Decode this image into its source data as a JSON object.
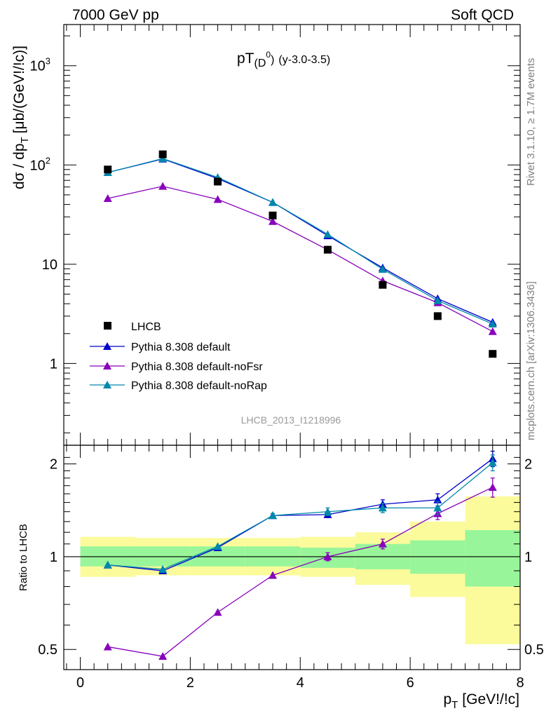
{
  "header": {
    "energy": "7000 GeV pp",
    "process": "Soft QCD"
  },
  "side": {
    "rivet": "Rivet 3.1.10, ≥ 1.7M events",
    "source": "mcplots.cern.ch [arXiv:1306.3436]"
  },
  "chart_data": [
    {
      "type": "scatter",
      "title_main": "pT",
      "title_sub": "(D",
      "title_sup": "0",
      "title_sub_close": ")",
      "title_extra": "(y-3.0-3.5)",
      "ylabel_main": "dσ / dp",
      "ylabel_sub": "T",
      "ylabel_unit": "[μb/(GeV!/!c)]",
      "analysis_tag": "LHCB_2013_I1218996",
      "yscale": "log",
      "xlim": [
        -0.3,
        8.0
      ],
      "ylim": [
        0.15,
        2600
      ],
      "y_ticks": [
        {
          "value": 1,
          "label": "1"
        },
        {
          "value": 10,
          "label": "10"
        },
        {
          "value": 100,
          "label": "10",
          "sup": "2"
        },
        {
          "value": 1000,
          "label": "10",
          "sup": "3"
        }
      ],
      "legend_position": "left-lower",
      "data": {
        "name": "LHCB",
        "color": "#000000",
        "x": [
          0.5,
          1.5,
          2.5,
          3.5,
          4.5,
          5.5,
          6.5,
          7.5
        ],
        "y": [
          90,
          128,
          68,
          31,
          14,
          6.2,
          3.0,
          1.25
        ]
      },
      "series": [
        {
          "name": "Pythia 8.308 default",
          "color": "#0000cc",
          "x": [
            0.5,
            1.5,
            2.5,
            3.5,
            4.5,
            5.5,
            6.5,
            7.5
          ],
          "y": [
            84,
            115,
            73,
            42,
            19.4,
            9.2,
            4.5,
            2.6
          ]
        },
        {
          "name": "Pythia 8.308 default-noFsr",
          "color": "#8800bb",
          "x": [
            0.5,
            1.5,
            2.5,
            3.5,
            4.5,
            5.5,
            6.5,
            7.5
          ],
          "y": [
            46,
            61,
            45,
            27,
            14,
            6.8,
            4.1,
            2.1
          ]
        },
        {
          "name": "Pythia 8.308 default-noRap",
          "color": "#0088aa",
          "x": [
            0.5,
            1.5,
            2.5,
            3.5,
            4.5,
            5.5,
            6.5,
            7.5
          ],
          "y": [
            84,
            116,
            75,
            42,
            20,
            8.9,
            4.3,
            2.5
          ]
        }
      ]
    },
    {
      "type": "line",
      "ylabel": "Ratio to LHCB",
      "xlabel_main": "p",
      "xlabel_sub": "T",
      "xlabel_unit": "[GeV!/!c]",
      "yscale": "log",
      "xlim": [
        -0.3,
        8.0
      ],
      "ylim": [
        0.43,
        2.3
      ],
      "x_ticks": [
        0,
        2,
        4,
        6,
        8
      ],
      "y_ticks": [
        {
          "value": 0.5,
          "label": "0.5"
        },
        {
          "value": 1,
          "label": "1"
        },
        {
          "value": 2,
          "label": "2"
        }
      ],
      "bands": {
        "bin_edges": [
          0,
          1,
          2,
          3,
          4,
          5,
          6,
          7,
          8
        ],
        "inner_low": [
          0.93,
          0.93,
          0.93,
          0.93,
          0.92,
          0.91,
          0.88,
          0.8
        ],
        "inner_high": [
          1.08,
          1.08,
          1.08,
          1.08,
          1.07,
          1.1,
          1.13,
          1.22
        ],
        "outer_low": [
          0.86,
          0.87,
          0.87,
          0.87,
          0.86,
          0.81,
          0.74,
          0.52
        ],
        "outer_high": [
          1.16,
          1.15,
          1.15,
          1.15,
          1.16,
          1.2,
          1.3,
          1.57
        ],
        "inner_color": "#99f599",
        "outer_color": "#fbfb9b"
      },
      "series": [
        {
          "name": "Pythia 8.308 default",
          "color": "#0000cc",
          "x": [
            0.5,
            1.5,
            2.5,
            3.5,
            4.5,
            5.5,
            6.5,
            7.5
          ],
          "y": [
            0.94,
            0.9,
            1.07,
            1.36,
            1.37,
            1.48,
            1.53,
            2.08
          ],
          "err": [
            0.01,
            0.01,
            0.01,
            0.02,
            0.03,
            0.05,
            0.07,
            0.12
          ]
        },
        {
          "name": "Pythia 8.308 default-noFsr",
          "color": "#8800bb",
          "x": [
            0.5,
            1.5,
            2.5,
            3.5,
            4.5,
            5.5,
            6.5,
            7.5
          ],
          "y": [
            0.51,
            0.475,
            0.66,
            0.87,
            1.0,
            1.1,
            1.38,
            1.68
          ],
          "err": [
            0.005,
            0.005,
            0.01,
            0.01,
            0.03,
            0.04,
            0.06,
            0.12
          ]
        },
        {
          "name": "Pythia 8.308 default-noRap",
          "color": "#0088aa",
          "x": [
            0.5,
            1.5,
            2.5,
            3.5,
            4.5,
            5.5,
            6.5,
            7.5
          ],
          "y": [
            0.94,
            0.91,
            1.08,
            1.36,
            1.4,
            1.44,
            1.44,
            2.02
          ],
          "err": [
            0.01,
            0.01,
            0.01,
            0.02,
            0.04,
            0.05,
            0.07,
            0.12
          ]
        }
      ]
    }
  ]
}
